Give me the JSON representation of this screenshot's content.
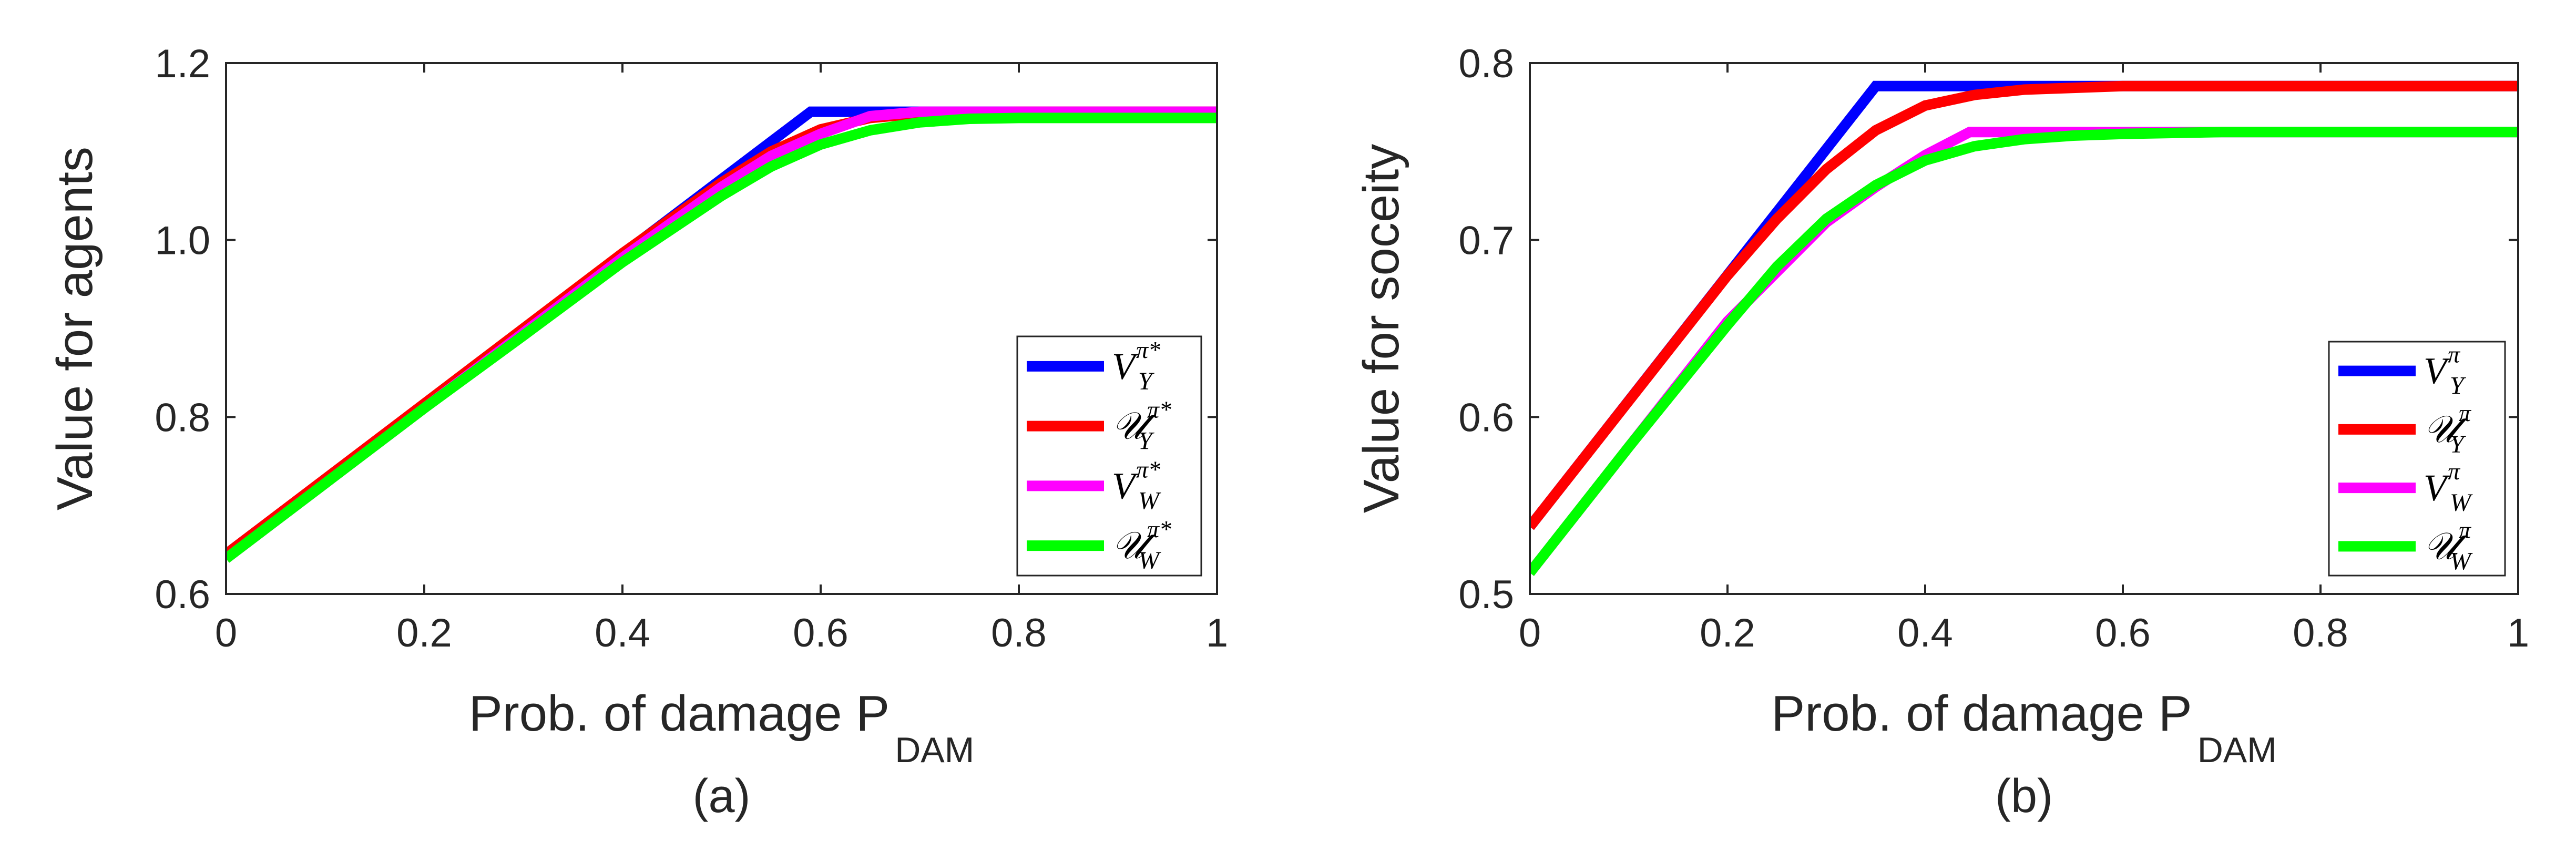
{
  "chart_data": [
    {
      "type": "line",
      "ylabel": "Value for agents",
      "xlabel": "Prob. of damage P",
      "xlabel_sub": "DAM",
      "caption": "(a)",
      "xlim": [
        0,
        1
      ],
      "ylim": [
        0.6,
        1.2
      ],
      "xticks": [
        "0",
        "0.2",
        "0.4",
        "0.6",
        "0.8",
        "1"
      ],
      "xtick_values": [
        0,
        0.2,
        0.4,
        0.6,
        0.8,
        1
      ],
      "yticks": [
        "0.6",
        "0.8",
        "1.0",
        "1.2"
      ],
      "ytick_values": [
        0.6,
        0.8,
        1.0,
        1.2
      ],
      "legend_position": "lower-right",
      "series": [
        {
          "name": "V_Y^{π*}",
          "legend": {
            "main": "V",
            "sub": "Y",
            "sup": "π*"
          },
          "color": "#0000ff",
          "x": [
            0,
            0.59,
            1
          ],
          "y": [
            0.645,
            1.145,
            1.145
          ]
        },
        {
          "name": "U_Y^{π*}",
          "legend": {
            "main": "𝒰",
            "sub": "Y",
            "sup": "π*"
          },
          "color": "#ff0000",
          "x": [
            0,
            0.1,
            0.2,
            0.3,
            0.4,
            0.5,
            0.55,
            0.6,
            0.65,
            0.7,
            0.8,
            0.9,
            1
          ],
          "y": [
            0.645,
            0.73,
            0.815,
            0.9,
            0.985,
            1.065,
            1.1,
            1.125,
            1.138,
            1.143,
            1.145,
            1.145,
            1.145
          ]
        },
        {
          "name": "V_W^{π*}",
          "legend": {
            "main": "V",
            "sub": "W",
            "sup": "π*"
          },
          "color": "#ff00ff",
          "x": [
            0,
            0.1,
            0.2,
            0.3,
            0.4,
            0.5,
            0.55,
            0.6,
            0.65,
            0.7,
            1
          ],
          "y": [
            0.64,
            0.725,
            0.81,
            0.895,
            0.98,
            1.06,
            1.095,
            1.12,
            1.14,
            1.145,
            1.145
          ]
        },
        {
          "name": "U_W^{π*}",
          "legend": {
            "main": "𝒰",
            "sub": "W",
            "sup": "π*"
          },
          "color": "#00ff00",
          "x": [
            0,
            0.1,
            0.2,
            0.3,
            0.4,
            0.5,
            0.55,
            0.6,
            0.65,
            0.7,
            0.75,
            0.8,
            0.9,
            1
          ],
          "y": [
            0.64,
            0.725,
            0.81,
            0.892,
            0.975,
            1.05,
            1.083,
            1.108,
            1.124,
            1.133,
            1.137,
            1.138,
            1.138,
            1.138
          ]
        }
      ]
    },
    {
      "type": "line",
      "ylabel": "Value for soceity",
      "xlabel": "Prob. of damage P",
      "xlabel_sub": "DAM",
      "caption": "(b)",
      "xlim": [
        0,
        1
      ],
      "ylim": [
        0.5,
        0.8
      ],
      "xticks": [
        "0",
        "0.2",
        "0.4",
        "0.6",
        "0.8",
        "1"
      ],
      "xtick_values": [
        0,
        0.2,
        0.4,
        0.6,
        0.8,
        1
      ],
      "yticks": [
        "0.5",
        "0.6",
        "0.7",
        "0.8"
      ],
      "ytick_values": [
        0.5,
        0.6,
        0.7,
        0.8
      ],
      "legend_position": "lower-right",
      "series": [
        {
          "name": "V_Y^{π}",
          "legend": {
            "main": "V",
            "sub": "Y",
            "sup": "π"
          },
          "color": "#0000ff",
          "x": [
            0,
            0.35,
            1
          ],
          "y": [
            0.538,
            0.787,
            0.787
          ]
        },
        {
          "name": "U_Y^{π}",
          "legend": {
            "main": "𝒰",
            "sub": "Y",
            "sup": "π"
          },
          "color": "#ff0000",
          "x": [
            0,
            0.1,
            0.2,
            0.25,
            0.3,
            0.35,
            0.4,
            0.45,
            0.5,
            0.55,
            0.6,
            0.7,
            1
          ],
          "y": [
            0.538,
            0.609,
            0.68,
            0.712,
            0.74,
            0.762,
            0.776,
            0.782,
            0.785,
            0.786,
            0.787,
            0.787,
            0.787
          ]
        },
        {
          "name": "V_W^{π}",
          "legend": {
            "main": "V",
            "sub": "W",
            "sup": "π"
          },
          "color": "#ff00ff",
          "x": [
            0,
            0.1,
            0.2,
            0.3,
            0.35,
            0.4,
            0.445,
            1
          ],
          "y": [
            0.512,
            0.583,
            0.654,
            0.71,
            0.73,
            0.748,
            0.761,
            0.761
          ]
        },
        {
          "name": "U_W^{π}",
          "legend": {
            "main": "𝒰",
            "sub": "W",
            "sup": "π"
          },
          "color": "#00ff00",
          "x": [
            0,
            0.1,
            0.2,
            0.25,
            0.3,
            0.35,
            0.4,
            0.45,
            0.5,
            0.55,
            0.6,
            0.7,
            1
          ],
          "y": [
            0.512,
            0.583,
            0.652,
            0.685,
            0.712,
            0.731,
            0.745,
            0.753,
            0.757,
            0.759,
            0.76,
            0.761,
            0.761
          ]
        }
      ]
    }
  ]
}
